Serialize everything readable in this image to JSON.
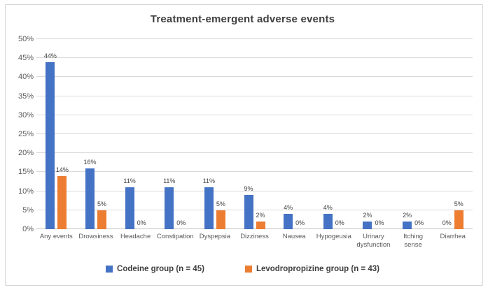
{
  "chart_data": {
    "type": "bar",
    "title": "Treatment-emergent adverse events",
    "categories": [
      "Any events",
      "Drowsiness",
      "Headache",
      "Constipation",
      "Dyspepsia",
      "Dizziness",
      "Nausea",
      "Hypogeusia",
      "Urinary dysfunction",
      "Itching sense",
      "Diarrhea"
    ],
    "series": [
      {
        "name": "Codeine group (n = 45)",
        "color": "#4472C4",
        "values": [
          44,
          16,
          11,
          11,
          11,
          9,
          4,
          4,
          2,
          2,
          0
        ]
      },
      {
        "name": "Levodropropizine group (n = 43)",
        "color": "#ED7D31",
        "values": [
          14,
          5,
          0,
          0,
          5,
          2,
          0,
          0,
          0,
          0,
          5
        ]
      }
    ],
    "xlabel": "",
    "ylabel": "",
    "ylim": [
      0,
      50
    ],
    "ytick_step": 5,
    "yticks": [
      "0%",
      "5%",
      "10%",
      "15%",
      "20%",
      "25%",
      "30%",
      "35%",
      "40%",
      "45%",
      "50%"
    ],
    "value_suffix": "%",
    "grid": true,
    "legend_position": "bottom"
  },
  "colors": {
    "title_text": "#404040",
    "tick_text": "#595959",
    "data_label_text": "#404040",
    "gridline": "#D9D9D9",
    "axis_line": "#BFBFBF",
    "frame_border": "#D6D6D6",
    "background": "#FFFFFF"
  }
}
